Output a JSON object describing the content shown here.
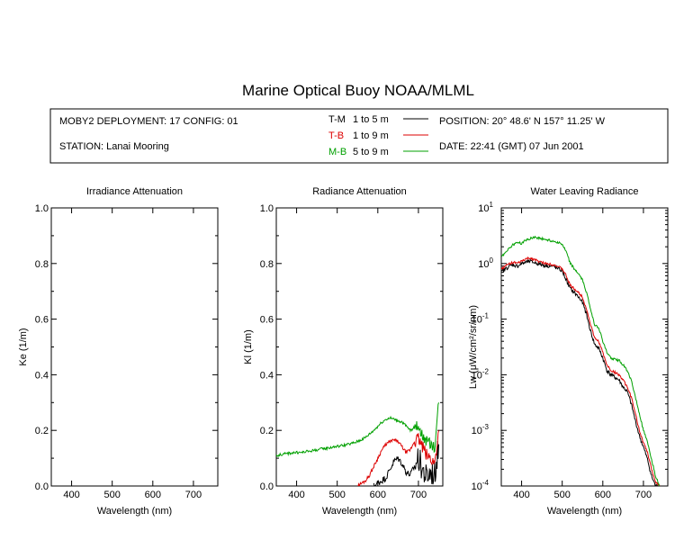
{
  "header": {
    "title": "Marine Optical Buoy NOAA/MLML",
    "deployment": "MOBY2 DEPLOYMENT: 17 CONFIG: 01",
    "station": "STATION: Lanai Mooring",
    "position": "POSITION: 20° 48.6' N   157° 11.25' W",
    "date": "DATE: 22:41 (GMT) 07 Jun 2001",
    "legend": [
      {
        "key": "T-M",
        "range": "1 to 5  m",
        "color": "#000000"
      },
      {
        "key": "T-B",
        "range": "1 to 9  m",
        "color": "#dd0000"
      },
      {
        "key": "M-B",
        "range": "5 to 9  m",
        "color": "#00a000"
      }
    ]
  },
  "chart_data": [
    {
      "type": "line",
      "title": "Irradiance Attenuation",
      "xlabel": "Wavelength (nm)",
      "ylabel": "Ke  (1/m)",
      "xlim": [
        350,
        760
      ],
      "ylim": [
        0,
        1.0
      ],
      "xticks": [
        "400",
        "500",
        "600",
        "700"
      ],
      "yticks": [
        "0.0",
        "0.2",
        "0.4",
        "0.6",
        "0.8",
        "1.0"
      ],
      "series": []
    },
    {
      "type": "line",
      "title": "Radiance Attenuation",
      "xlabel": "Wavelength (nm)",
      "ylabel": "Kl  (1/m)",
      "xlim": [
        350,
        760
      ],
      "ylim": [
        0,
        1.0
      ],
      "xticks": [
        "400",
        "500",
        "600",
        "700"
      ],
      "yticks": [
        "0.0",
        "0.2",
        "0.4",
        "0.6",
        "0.8",
        "1.0"
      ],
      "series": [
        {
          "key": "T-M",
          "color": "#000000",
          "noise": 0.012,
          "x": [
            590,
            600,
            610,
            620,
            630,
            640,
            650,
            660,
            670,
            680,
            690,
            700,
            710,
            720,
            730,
            740,
            750
          ],
          "y": [
            0.0,
            0.01,
            0.02,
            0.03,
            0.06,
            0.09,
            0.1,
            0.08,
            0.05,
            0.04,
            0.07,
            0.1,
            0.06,
            0.03,
            0.05,
            0.04,
            0.15
          ]
        },
        {
          "key": "T-B",
          "color": "#dd0000",
          "noise": 0.006,
          "x": [
            550,
            560,
            570,
            580,
            590,
            600,
            610,
            620,
            630,
            640,
            650,
            660,
            670,
            680,
            690,
            700,
            710,
            720,
            730,
            740,
            750
          ],
          "y": [
            0.0,
            0.01,
            0.02,
            0.04,
            0.07,
            0.1,
            0.13,
            0.15,
            0.16,
            0.165,
            0.16,
            0.14,
            0.12,
            0.13,
            0.16,
            0.17,
            0.14,
            0.11,
            0.1,
            0.08,
            0.2
          ]
        },
        {
          "key": "M-B",
          "color": "#00a000",
          "noise": 0.005,
          "x": [
            350,
            370,
            390,
            410,
            430,
            450,
            470,
            490,
            510,
            530,
            550,
            570,
            590,
            600,
            610,
            620,
            630,
            640,
            650,
            660,
            670,
            680,
            690,
            700,
            710,
            720,
            730,
            740,
            750
          ],
          "y": [
            0.11,
            0.115,
            0.12,
            0.12,
            0.125,
            0.13,
            0.135,
            0.14,
            0.145,
            0.15,
            0.16,
            0.175,
            0.2,
            0.215,
            0.23,
            0.24,
            0.245,
            0.24,
            0.235,
            0.23,
            0.215,
            0.2,
            0.21,
            0.22,
            0.18,
            0.16,
            0.15,
            0.14,
            0.3
          ]
        }
      ]
    },
    {
      "type": "line",
      "title": "Water Leaving Radiance",
      "xlabel": "Wavelength (nm)",
      "ylabel": "Lw  (μW/cm²/sr/nm)",
      "xlim": [
        350,
        760
      ],
      "ylim": [
        0.0001,
        10
      ],
      "yscale": "log",
      "xticks": [
        "400",
        "500",
        "600",
        "700"
      ],
      "yticks": [
        {
          "base": "10",
          "exp": "1"
        },
        {
          "base": "10",
          "exp": "0"
        },
        {
          "base": "10",
          "exp": "-1"
        },
        {
          "base": "10",
          "exp": "-2"
        },
        {
          "base": "10",
          "exp": "-3"
        },
        {
          "base": "10",
          "exp": "-4"
        }
      ],
      "series": [
        {
          "key": "T-M",
          "color": "#000000",
          "noise": 0.08,
          "x": [
            350,
            360,
            370,
            380,
            390,
            400,
            410,
            420,
            430,
            440,
            450,
            460,
            470,
            480,
            490,
            500,
            510,
            520,
            530,
            540,
            550,
            560,
            570,
            580,
            590,
            600,
            610,
            620,
            630,
            640,
            650,
            660,
            670,
            680,
            690,
            700,
            710,
            720,
            730,
            740
          ],
          "y": [
            0.7,
            0.8,
            0.9,
            0.95,
            0.9,
            1.0,
            1.05,
            1.1,
            1.05,
            1.0,
            0.95,
            0.92,
            0.9,
            0.88,
            0.8,
            0.75,
            0.5,
            0.35,
            0.3,
            0.25,
            0.2,
            0.12,
            0.06,
            0.035,
            0.03,
            0.02,
            0.012,
            0.01,
            0.009,
            0.008,
            0.006,
            0.005,
            0.003,
            0.0015,
            0.0008,
            0.0005,
            0.0003,
            0.00015,
            0.0001,
            0.0001
          ]
        },
        {
          "key": "T-B",
          "color": "#dd0000",
          "noise": 0.05,
          "x": [
            350,
            360,
            370,
            380,
            390,
            400,
            410,
            420,
            430,
            440,
            450,
            460,
            470,
            480,
            490,
            500,
            510,
            520,
            530,
            540,
            550,
            560,
            570,
            580,
            590,
            600,
            610,
            620,
            630,
            640,
            650,
            660,
            670,
            680,
            690,
            700,
            710,
            720,
            730,
            740
          ],
          "y": [
            0.8,
            0.9,
            1.0,
            1.05,
            1.0,
            1.1,
            1.2,
            1.25,
            1.2,
            1.1,
            1.05,
            1.0,
            0.98,
            0.95,
            0.88,
            0.8,
            0.6,
            0.4,
            0.35,
            0.3,
            0.25,
            0.15,
            0.08,
            0.045,
            0.04,
            0.025,
            0.015,
            0.012,
            0.011,
            0.01,
            0.008,
            0.006,
            0.004,
            0.002,
            0.001,
            0.0006,
            0.0004,
            0.0002,
            0.00012,
            0.0001
          ]
        },
        {
          "key": "M-B",
          "color": "#00a000",
          "noise": 0.05,
          "x": [
            350,
            360,
            370,
            380,
            390,
            400,
            410,
            420,
            430,
            440,
            450,
            460,
            470,
            480,
            490,
            500,
            510,
            520,
            530,
            540,
            550,
            560,
            570,
            580,
            590,
            600,
            610,
            620,
            630,
            640,
            650,
            660,
            670,
            680,
            690,
            700,
            710,
            720,
            730,
            740
          ],
          "y": [
            1.3,
            1.6,
            1.9,
            2.2,
            2.4,
            2.3,
            2.6,
            2.8,
            3.0,
            2.9,
            2.8,
            2.7,
            2.6,
            2.5,
            2.4,
            2.2,
            1.6,
            1.0,
            0.8,
            0.65,
            0.5,
            0.3,
            0.15,
            0.08,
            0.07,
            0.04,
            0.025,
            0.02,
            0.019,
            0.018,
            0.015,
            0.012,
            0.008,
            0.004,
            0.002,
            0.001,
            0.0006,
            0.0003,
            0.00015,
            0.0001
          ]
        }
      ]
    }
  ]
}
